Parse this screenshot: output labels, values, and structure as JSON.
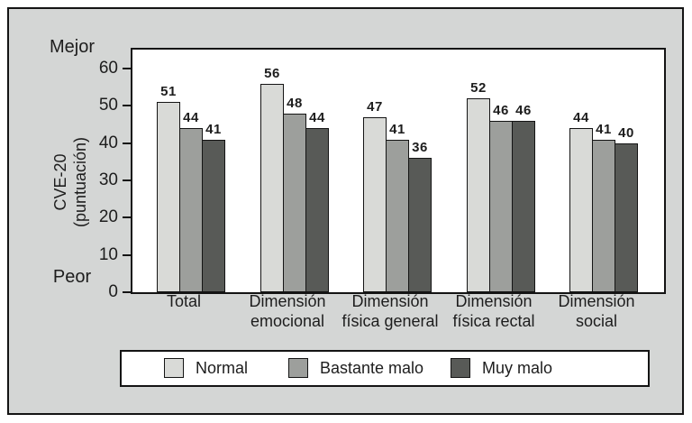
{
  "figure": {
    "better_label": "Mejor",
    "worse_label": "Peor",
    "y_axis_title_line1": "CVE-20",
    "y_axis_title_line2": "(puntuación)"
  },
  "chart_data": {
    "type": "bar",
    "title": "",
    "ylabel": "CVE-20 (puntuación)",
    "xlabel": "",
    "ylim": [
      0,
      65
    ],
    "y_ticks": [
      0,
      10,
      20,
      30,
      40,
      50,
      60
    ],
    "grid": false,
    "legend_position": "bottom",
    "axis_annotations": {
      "top": "Mejor",
      "bottom": "Peor"
    },
    "categories": [
      "Total",
      "Dimensión emocional",
      "Dimensión física general",
      "Dimensión física rectal",
      "Dimensión social"
    ],
    "categories_display": [
      [
        "Total"
      ],
      [
        "Dimensión",
        "emocional"
      ],
      [
        "Dimensión",
        "física general"
      ],
      [
        "Dimensión",
        "física rectal"
      ],
      [
        "Dimensión",
        "social"
      ]
    ],
    "series": [
      {
        "name": "Normal",
        "color": "#d9dad7",
        "values": [
          51,
          56,
          47,
          52,
          44
        ]
      },
      {
        "name": "Bastante malo",
        "color": "#9d9f9c",
        "values": [
          44,
          48,
          41,
          46,
          41
        ]
      },
      {
        "name": "Muy malo",
        "color": "#585a57",
        "values": [
          41,
          44,
          36,
          46,
          40
        ]
      }
    ],
    "colors": {
      "panel_background": "#d4d6d5",
      "plot_background": "#ffffff",
      "border": "#141414"
    }
  }
}
